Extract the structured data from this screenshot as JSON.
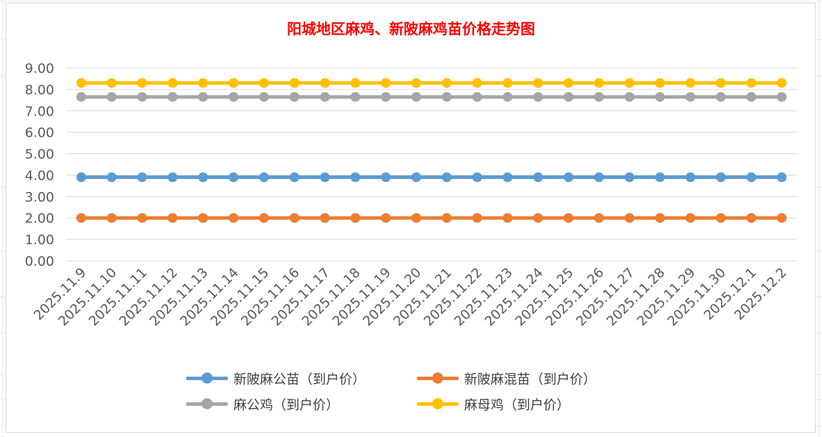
{
  "chart_data": {
    "type": "line",
    "title": "阳城地区麻鸡、新陂麻鸡苗价格走势图",
    "categories": [
      "2025.11.9",
      "2025.11.10",
      "2025.11.11",
      "2025.11.12",
      "2025.11.13",
      "2025.11.14",
      "2025.11.15",
      "2025.11.16",
      "2025.11.17",
      "2025.11.18",
      "2025.11.19",
      "2025.11.20",
      "2025.11.21",
      "2025.11.22",
      "2025.11.23",
      "2025.11.24",
      "2025.11.25",
      "2025.11.26",
      "2025.11.27",
      "2025.11.28",
      "2025.11.29",
      "2025.11.30",
      "2025.12.1",
      "2025.12.2"
    ],
    "yticks": [
      "0.00",
      "1.00",
      "2.00",
      "3.00",
      "4.00",
      "5.00",
      "6.00",
      "7.00",
      "8.00",
      "9.00"
    ],
    "ylim": [
      0,
      9
    ],
    "grid": true,
    "legend_position": "bottom",
    "series": [
      {
        "name": "新陂麻公苗（到户价）",
        "color": "#5b9bd5",
        "values": [
          3.9,
          3.9,
          3.9,
          3.9,
          3.9,
          3.9,
          3.9,
          3.9,
          3.9,
          3.9,
          3.9,
          3.9,
          3.9,
          3.9,
          3.9,
          3.9,
          3.9,
          3.9,
          3.9,
          3.9,
          3.9,
          3.9,
          3.9,
          3.9
        ]
      },
      {
        "name": "新陂麻混苗（到户价）",
        "color": "#ed7d31",
        "values": [
          2.0,
          2.0,
          2.0,
          2.0,
          2.0,
          2.0,
          2.0,
          2.0,
          2.0,
          2.0,
          2.0,
          2.0,
          2.0,
          2.0,
          2.0,
          2.0,
          2.0,
          2.0,
          2.0,
          2.0,
          2.0,
          2.0,
          2.0,
          2.0
        ]
      },
      {
        "name": "麻公鸡（到户价）",
        "color": "#a5a5a5",
        "values": [
          7.65,
          7.65,
          7.65,
          7.65,
          7.65,
          7.65,
          7.65,
          7.65,
          7.65,
          7.65,
          7.65,
          7.65,
          7.65,
          7.65,
          7.65,
          7.65,
          7.65,
          7.65,
          7.65,
          7.65,
          7.65,
          7.65,
          7.65,
          7.65
        ]
      },
      {
        "name": "麻母鸡（到户价）",
        "color": "#ffc000",
        "values": [
          8.3,
          8.3,
          8.3,
          8.3,
          8.3,
          8.3,
          8.3,
          8.3,
          8.3,
          8.3,
          8.3,
          8.3,
          8.3,
          8.3,
          8.3,
          8.3,
          8.3,
          8.3,
          8.3,
          8.3,
          8.3,
          8.3,
          8.3,
          8.3
        ]
      }
    ]
  }
}
